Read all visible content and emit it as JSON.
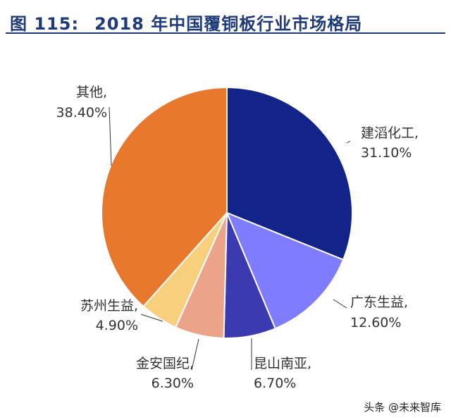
{
  "figure": {
    "number": "图 115:",
    "title": "2018 年中国覆铜板行业市场格局"
  },
  "watermark": "头条 @未来智库",
  "chart_data": {
    "type": "pie",
    "title": "2018 年中国覆铜板行业市场格局",
    "unit": "%",
    "slices": [
      {
        "label": "建滔化工",
        "value": 31.1,
        "value_label": "31.10%",
        "color": "#12238a"
      },
      {
        "label": "广东生益",
        "value": 12.6,
        "value_label": "12.60%",
        "color": "#7f7cff"
      },
      {
        "label": "昆山南亚",
        "value": 6.7,
        "value_label": "6.70%",
        "color": "#3b3ab0"
      },
      {
        "label": "金安国纪",
        "value": 6.3,
        "value_label": "6.30%",
        "color": "#eba48a"
      },
      {
        "label": "苏州生益",
        "value": 4.9,
        "value_label": "4.90%",
        "color": "#f8cf7d"
      },
      {
        "label": "其他",
        "value": 38.4,
        "value_label": "38.40%",
        "color": "#e8792c"
      }
    ],
    "start_angle_deg": 0,
    "direction": "clockwise",
    "slice_border_color": "#ffffff",
    "label_line_color": "#333333",
    "label_color": "#333333"
  }
}
